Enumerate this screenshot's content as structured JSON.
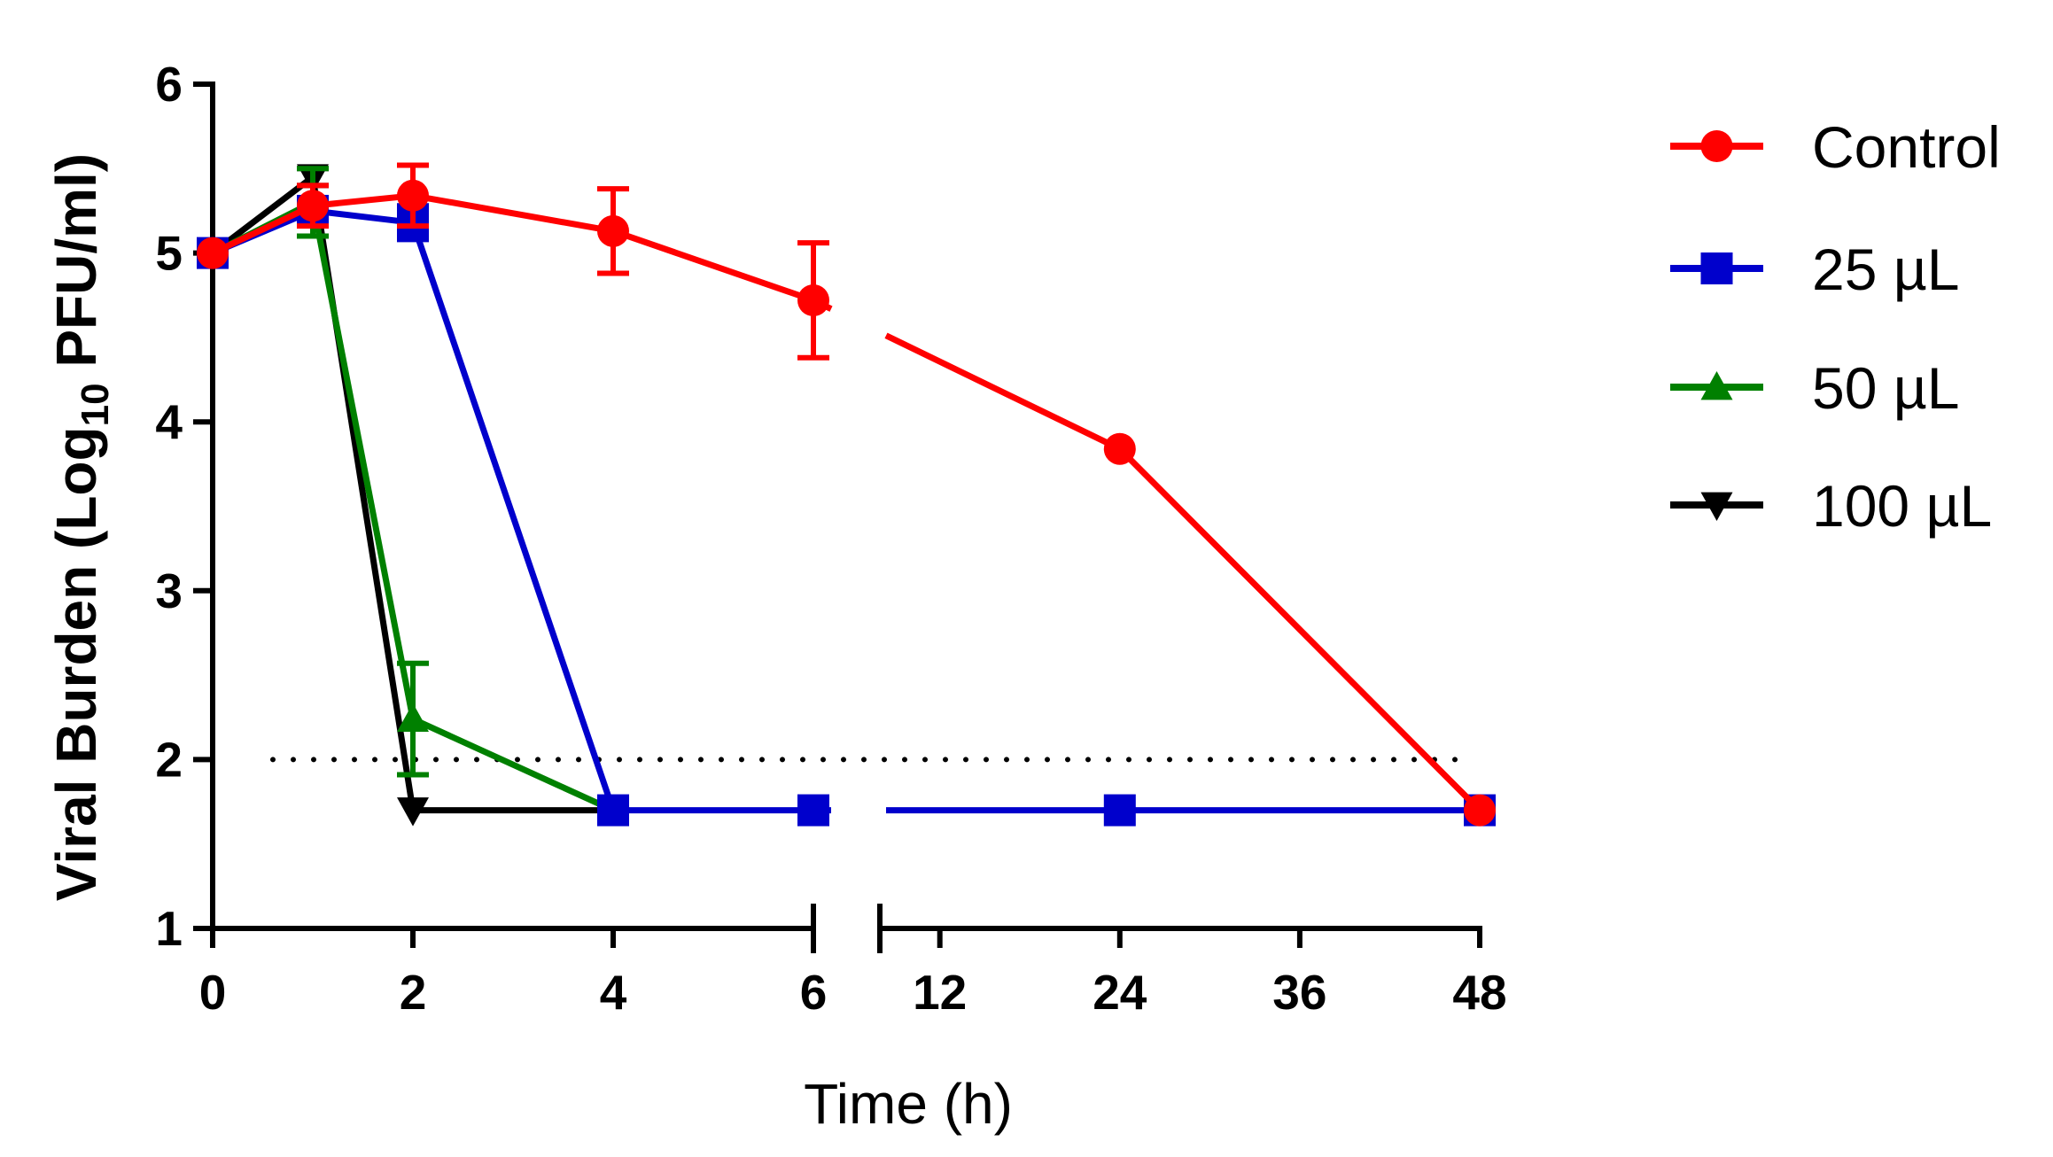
{
  "chart_data": {
    "type": "line",
    "title": "",
    "xlabel": "Time (h)",
    "ylabel": {
      "prefix": "Viral Burden (Log",
      "subscript": "10",
      "suffix": " PFU/ml)"
    },
    "ylim": [
      1,
      6
    ],
    "y_ticks": [
      "1",
      "2",
      "3",
      "4",
      "5",
      "6"
    ],
    "x_axis_break": true,
    "x_segments": [
      {
        "range": [
          0,
          6
        ],
        "ticks": [
          "0",
          "2",
          "4",
          "6"
        ]
      },
      {
        "range": [
          8,
          48
        ],
        "ticks": [
          "12",
          "24",
          "36",
          "48"
        ]
      }
    ],
    "detection_limit": 2,
    "series": [
      {
        "name": "Control",
        "color": "#ff0000",
        "marker": "circle",
        "x": [
          0,
          1,
          2,
          4,
          6,
          24,
          48
        ],
        "y": [
          5.0,
          5.28,
          5.34,
          5.13,
          4.72,
          3.84,
          1.7
        ],
        "err": [
          0,
          0.12,
          0.18,
          0.25,
          0.34,
          0,
          0
        ]
      },
      {
        "name": "25 µL",
        "color": "#0000cc",
        "marker": "square",
        "x": [
          0,
          1,
          2,
          4,
          6,
          24,
          48
        ],
        "y": [
          5.0,
          5.25,
          5.18,
          1.7,
          1.7,
          1.7,
          1.7
        ],
        "err": [
          0,
          0.05,
          0.1,
          0,
          0,
          0,
          0
        ]
      },
      {
        "name": "50 µL",
        "color": "#008000",
        "marker": "triangle-up",
        "x": [
          0,
          1,
          2,
          4
        ],
        "y": [
          5.0,
          5.3,
          2.24,
          1.7
        ],
        "err": [
          0,
          0.2,
          0.33,
          0
        ]
      },
      {
        "name": "100 µL",
        "color": "#000000",
        "marker": "triangle-down",
        "x": [
          0,
          1,
          2,
          4
        ],
        "y": [
          5.0,
          5.45,
          1.7,
          1.7
        ],
        "err": [
          0,
          0.05,
          0,
          0
        ]
      }
    ],
    "legend_position": "top-right"
  }
}
